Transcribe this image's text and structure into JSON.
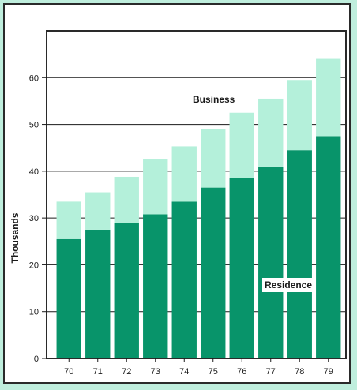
{
  "chart_data": {
    "type": "bar",
    "stacked": true,
    "categories": [
      "70",
      "71",
      "72",
      "73",
      "74",
      "75",
      "76",
      "77",
      "78",
      "79"
    ],
    "series": [
      {
        "name": "Residence",
        "values": [
          25.5,
          27.5,
          29.0,
          30.8,
          33.5,
          36.5,
          38.5,
          41.0,
          44.5,
          47.5
        ],
        "color": "#08946a"
      },
      {
        "name": "Business",
        "values": [
          8.0,
          8.0,
          9.8,
          11.7,
          11.8,
          12.5,
          14.0,
          14.5,
          15.0,
          16.5
        ],
        "color": "#b4f0da"
      }
    ],
    "title": "",
    "xlabel": "",
    "ylabel": "Thousands",
    "ylim": [
      0,
      70
    ],
    "yticks": [
      "0",
      "10",
      "20",
      "30",
      "40",
      "50",
      "60"
    ],
    "grid": true,
    "colors": {
      "background": "#bfeedd",
      "frame": "#2a2a2a",
      "gridline": "#1a1a1a",
      "residence_label_bg": "#ffffff"
    }
  }
}
